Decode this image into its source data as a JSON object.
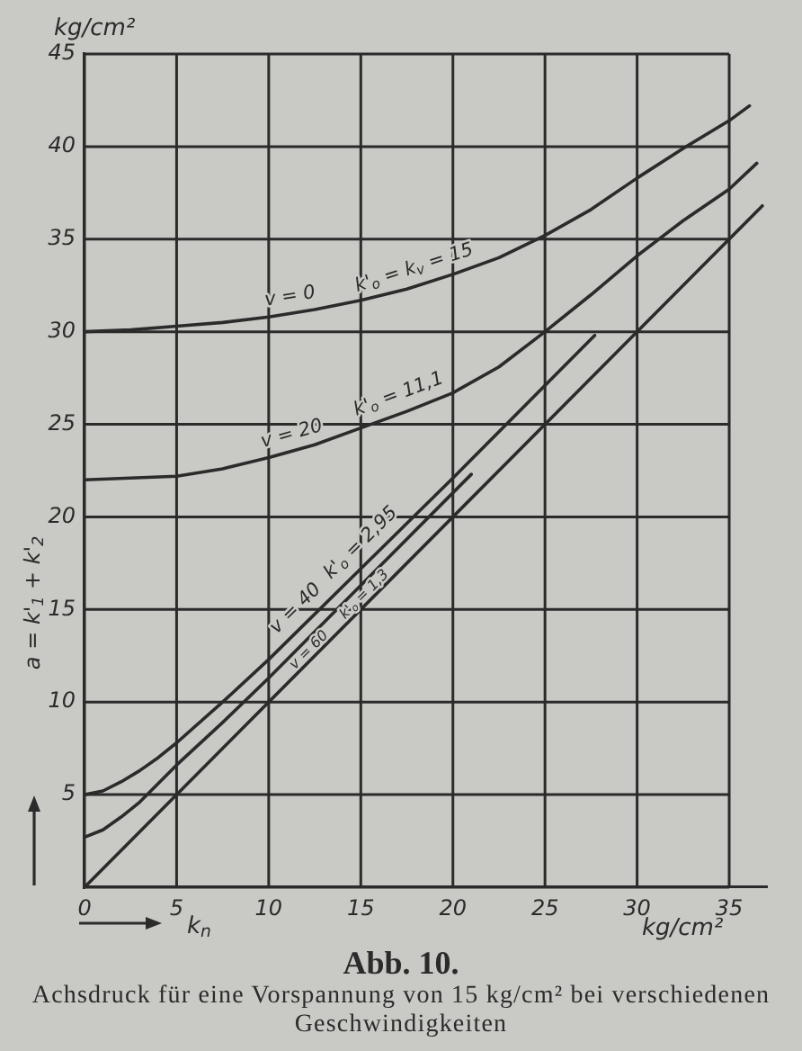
{
  "chart_data": {
    "type": "line",
    "title": "Abb. 10.",
    "subtitle": "Achsdruck für eine Vorspannung von 15 kg/cm² bei verschiedenen Geschwindigkeiten",
    "xlabel": "k$_{n}$",
    "ylabel": "a = k'$_{1}$ + k'$_{2}$",
    "xlim": [
      0,
      37
    ],
    "xticks": [
      0,
      5,
      10,
      15,
      20,
      25,
      30,
      35
    ],
    "ylim": [
      0,
      45
    ],
    "yticks": [
      {
        "value": 0,
        "label": null
      },
      5,
      10,
      15,
      20,
      25,
      30,
      35,
      40,
      45
    ],
    "grid": true,
    "marker": "none",
    "line_style": "solid",
    "series": [
      {
        "color": "#2b2b2b",
        "x": [
          0,
          2.5,
          5,
          7.5,
          10,
          12.5,
          15,
          17.5,
          20,
          22.5,
          25,
          27.5,
          30,
          32.5,
          35,
          36.1
        ],
        "values": [
          30,
          30.1,
          30.3,
          30.5,
          30.8,
          31.2,
          31.7,
          32.3,
          33.1,
          34,
          35.2,
          36.6,
          38.3,
          39.9,
          41.4,
          42.2
        ]
      },
      {
        "color": "#2b2b2b",
        "x": [
          0,
          2.5,
          5,
          7.5,
          10,
          12.5,
          15,
          17.5,
          20,
          22.5,
          25,
          27.5,
          30,
          32.5,
          35,
          36.5
        ],
        "values": [
          22,
          22.1,
          22.2,
          22.6,
          23.2,
          23.9,
          24.8,
          25.7,
          26.7,
          28.1,
          30,
          32,
          34.1,
          36,
          37.7,
          39.1
        ]
      },
      {
        "color": "#2b2b2b",
        "x": [
          0,
          1,
          2,
          3,
          4,
          5,
          7.5,
          10,
          15,
          20,
          27.7
        ],
        "values": [
          5,
          5.2,
          5.7,
          6.3,
          7,
          7.8,
          10,
          12.3,
          17.2,
          22.1,
          29.8
        ]
      },
      {
        "color": "#2b2b2b",
        "x": [
          0,
          1,
          2,
          3,
          5,
          7.5,
          10,
          15,
          21
        ],
        "values": [
          2.7,
          3.1,
          3.8,
          4.6,
          6.6,
          8.9,
          11.3,
          16.3,
          22.3
        ]
      },
      {
        "color": "#2b2b2b",
        "x": [
          0,
          36.8
        ],
        "values": [
          0,
          36.8
        ]
      }
    ],
    "annotations": [
      "kg/cm²",
      "kg/cm²",
      {
        "text": "v = 0",
        "x": 11.3,
        "y": 31.0
      },
      {
        "text": "k'$_{o}$ = k$_{v}$ = 15",
        "x": 18.2,
        "y": 32.5
      },
      {
        "text": "v = 20",
        "x": 11.5,
        "y": 23.6
      },
      {
        "text": "k'$_{o}$ = 11,1",
        "x": 17.4,
        "y": 25.7
      },
      {
        "text": "v = 40",
        "x": 12.1,
        "y": 14.4
      },
      {
        "text": "k'$_{o}$ = 2,95",
        "x": 15.7,
        "y": 17.9
      },
      {
        "text": "v = 60",
        "x": 12.5,
        "y": 12.5
      },
      {
        "text": "k'$_{o}$ = 1,3",
        "x": 15.5,
        "y": 15.5
      }
    ]
  }
}
